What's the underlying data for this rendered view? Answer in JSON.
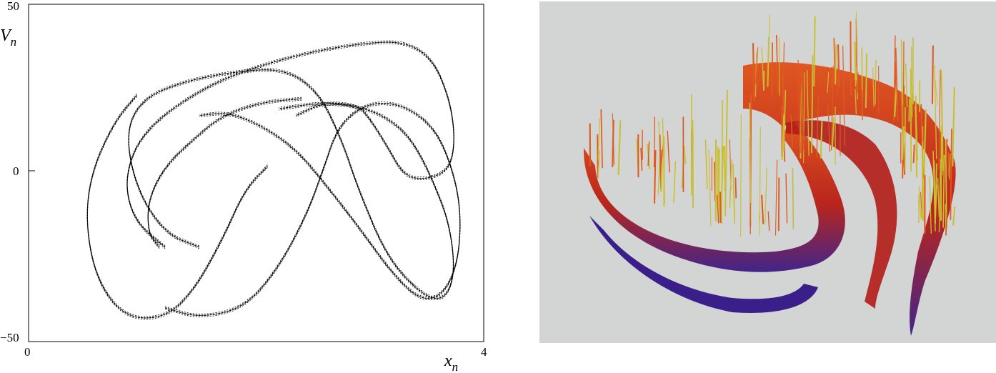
{
  "left_plot": {
    "ylabel_main": "V",
    "ylabel_sub": "n",
    "xlabel_main": "x",
    "xlabel_sub": "n"
  },
  "chart_data": [
    {
      "type": "scatter",
      "title": "",
      "xlim": [
        0,
        4
      ],
      "ylim": [
        -50,
        50
      ],
      "x_ticks": [
        "0",
        "4"
      ],
      "y_ticks": [
        "50",
        "0",
        "−50"
      ],
      "grid": false,
      "series": [
        {
          "style": "strange attractor, black dots",
          "color": "#000000",
          "strands": [
            {
              "x": [
                0.95,
                0.75,
                0.55,
                0.5,
                0.6,
                0.85,
                1.2,
                1.45,
                1.7,
                1.9,
                2.1
              ],
              "y": [
                23,
                15,
                0,
                -15,
                -32,
                -43,
                -43,
                -35,
                -20,
                -5,
                2
              ]
            },
            {
              "x": [
                1.2,
                0.95,
                0.85,
                0.9,
                1.05,
                1.3,
                1.65,
                2.05,
                2.5,
                2.95,
                3.3,
                3.55,
                3.7,
                3.75,
                3.7,
                3.5,
                3.3,
                3.15,
                3.0,
                2.9,
                2.6,
                2.35
              ],
              "y": [
                -22,
                -15,
                -5,
                5,
                13,
                20,
                27,
                32,
                36,
                38.5,
                39,
                34,
                22,
                10,
                1,
                -2,
                -1,
                8,
                16,
                20,
                21,
                17
              ]
            },
            {
              "x": [
                1.5,
                1.2,
                0.95,
                0.85,
                1.0,
                1.35,
                1.8,
                2.25,
                2.55,
                2.75,
                2.9,
                3.15,
                3.45,
                3.65,
                3.75,
                3.7,
                3.55,
                3.4,
                3.25,
                3.0,
                2.6,
                2.2
              ],
              "y": [
                -22,
                -18,
                -5,
                12,
                22,
                27,
                30,
                31,
                24,
                10,
                -5,
                -25,
                -36,
                -38,
                -30,
                -15,
                -2,
                8,
                14,
                19,
                21,
                19
              ]
            },
            {
              "x": [
                2.4,
                2.05,
                1.7,
                1.45,
                1.2,
                1.05,
                1.05,
                1.15
              ],
              "y": [
                22,
                21,
                17,
                10,
                2,
                -8,
                -18,
                -22
              ]
            },
            {
              "x": [
                1.2,
                1.5,
                1.9,
                2.2,
                2.45,
                2.6,
                2.7,
                2.85,
                3.05,
                3.3,
                3.55,
                3.7,
                3.8,
                3.78,
                3.65,
                3.45,
                3.2,
                2.9,
                2.6,
                2.35,
                2.05,
                1.75,
                1.5
              ],
              "y": [
                -40,
                -43,
                -40,
                -28,
                -12,
                2,
                12,
                18,
                21,
                20,
                14,
                4,
                -10,
                -26,
                -36,
                -38,
                -30,
                -16,
                -3,
                7,
                14,
                18,
                17
              ]
            }
          ]
        }
      ]
    },
    {
      "type": "3d-surface",
      "title": "",
      "colormap": [
        "#2a1a80",
        "#c02010",
        "#e04818",
        "#c8c030"
      ],
      "background": "#d3d4d4"
    }
  ]
}
